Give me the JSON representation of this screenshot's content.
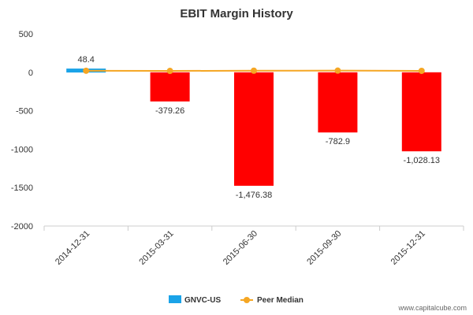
{
  "chart_data": {
    "type": "bar",
    "title": "EBIT Margin History",
    "categories": [
      "2014-12-31",
      "2015-03-31",
      "2015-06-30",
      "2015-09-30",
      "2015-12-31"
    ],
    "series": [
      {
        "name": "GNVC-US",
        "type": "bar",
        "values": [
          48.4,
          -379.26,
          -1476.38,
          -782.9,
          -1028.13
        ],
        "labels": [
          "48.4",
          "-379.26",
          "-1,476.38",
          "-782.9",
          "-1,028.13"
        ],
        "color_positive": "#1aa3e8",
        "color_negative": "#ff0000"
      },
      {
        "name": "Peer Median",
        "type": "line",
        "values": [
          20,
          18,
          21,
          22,
          19
        ],
        "color": "#f5a623"
      }
    ],
    "yticks": [
      500,
      0,
      -500,
      -1000,
      -1500,
      -2000
    ],
    "ylim": [
      -2000,
      500
    ],
    "grid": false,
    "legend": "bottom-center"
  },
  "ytick_labels": [
    "500",
    "0",
    "-500",
    "-1000",
    "-1500",
    "-2000"
  ],
  "credit": "www.capitalcube.com"
}
